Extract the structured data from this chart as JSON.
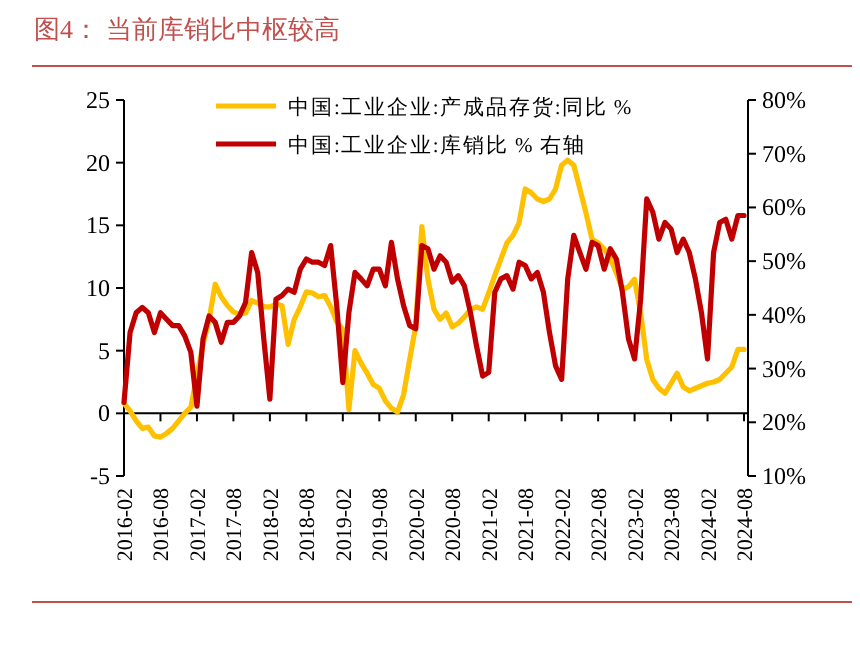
{
  "chart_data": {
    "type": "line",
    "title": "图4：   当前库销比中枢较高",
    "categories": [
      "2016-02",
      null,
      null,
      null,
      null,
      null,
      "2016-08",
      null,
      null,
      null,
      null,
      null,
      "2017-02",
      null,
      null,
      null,
      null,
      null,
      "2017-08",
      null,
      null,
      null,
      null,
      null,
      "2018-02",
      null,
      null,
      null,
      null,
      null,
      "2018-08",
      null,
      null,
      null,
      null,
      null,
      "2019-02",
      null,
      null,
      null,
      null,
      null,
      "2019-08",
      null,
      null,
      null,
      null,
      null,
      "2020-02",
      null,
      null,
      null,
      null,
      null,
      "2020-08",
      null,
      null,
      null,
      null,
      null,
      "2021-02",
      null,
      null,
      null,
      null,
      null,
      "2021-08",
      null,
      null,
      null,
      null,
      null,
      "2022-02",
      null,
      null,
      null,
      null,
      null,
      "2022-08",
      null,
      null,
      null,
      null,
      null,
      "2023-02",
      null,
      null,
      null,
      null,
      null,
      "2023-08",
      null,
      null,
      null,
      null,
      null,
      "2024-02",
      null,
      null,
      null,
      null,
      null,
      "2024-08"
    ],
    "series": [
      {
        "name": "中国:工业企业:产成品存货:同比 %",
        "color": "#ffc000",
        "values": [
          0.8,
          0.2,
          -0.6,
          -1.2,
          -1.1,
          -1.8,
          -1.9,
          -1.6,
          -1.2,
          -0.6,
          0,
          0.5,
          3,
          5.5,
          7.5,
          10.3,
          9.3,
          8.6,
          8.1,
          7.9,
          8,
          9,
          8.8,
          8.5,
          8.5,
          8.7,
          8.6,
          5.5,
          7.5,
          8.5,
          9.7,
          9.6,
          9.3,
          9.4,
          8.5,
          7.3,
          6.7,
          0.3,
          5,
          4,
          3.2,
          2.3,
          2,
          1,
          0.4,
          0.1,
          1.5,
          4.3,
          7,
          14.9,
          10.7,
          8.3,
          7.5,
          8,
          6.9,
          7.2,
          7.7,
          8.3,
          8.5,
          8.3,
          9.6,
          11,
          12.3,
          13.6,
          14.2,
          15.2,
          17.9,
          17.6,
          17.1,
          16.9,
          17.1,
          17.9,
          19.8,
          20.2,
          19.8,
          17.9,
          16,
          13.9,
          13.6,
          13.1,
          12.4,
          11.2,
          9.9,
          10.1,
          10.7,
          8,
          4.3,
          2.7,
          2,
          1.6,
          2.4,
          3.2,
          2.1,
          1.8,
          2,
          2.2,
          2.4,
          2.5,
          2.7,
          3.2,
          3.7,
          5.1,
          5.1
        ]
      },
      {
        "name": "中国:工业企业:库销比 % 右轴",
        "color": "#c00000",
        "axis": "y2",
        "values": [
          23.7,
          36.7,
          40.4,
          41.4,
          40.4,
          36.7,
          40.4,
          39.2,
          38,
          38,
          36.1,
          33,
          23,
          35.5,
          39.8,
          38.6,
          34.9,
          38.6,
          38.6,
          39.8,
          42.3,
          51.6,
          47.9,
          35.5,
          24.3,
          42.9,
          43.6,
          44.8,
          44.2,
          48.5,
          50.4,
          49.8,
          49.8,
          49.2,
          52.9,
          41.7,
          27.4,
          40.4,
          47.9,
          46.7,
          45.4,
          48.5,
          48.5,
          45.4,
          53.5,
          46.7,
          41.7,
          38,
          37.4,
          52.9,
          52.3,
          48.5,
          51,
          49.8,
          46.1,
          47.3,
          45.4,
          40.4,
          34.2,
          28.6,
          29.3,
          44.2,
          46.7,
          47.3,
          44.8,
          49.8,
          49.2,
          46.7,
          47.9,
          44.2,
          36.7,
          30.5,
          28,
          46.7,
          54.8,
          51.6,
          48.5,
          53.5,
          52.9,
          48.5,
          52.3,
          50.4,
          44.2,
          35.5,
          31.8,
          42.9,
          61.6,
          59.1,
          54.1,
          57.2,
          56,
          51.6,
          54.1,
          51.6,
          46.7,
          40.4,
          31.8,
          51.6,
          57.2,
          57.8,
          54.1,
          58.5,
          58.5
        ]
      }
    ],
    "ylim": [
      -5,
      25
    ],
    "yticks": [
      -5,
      0,
      5,
      10,
      15,
      20,
      25
    ],
    "y2lim": [
      10,
      80
    ],
    "y2ticks": [
      {
        "value": 10,
        "label": "10%"
      },
      {
        "value": 20,
        "label": "20%"
      },
      {
        "value": 30,
        "label": "30%"
      },
      {
        "value": 40,
        "label": "40%"
      },
      {
        "value": 50,
        "label": "50%"
      },
      {
        "value": 60,
        "label": "60%"
      },
      {
        "value": 70,
        "label": "70%"
      },
      {
        "value": 80,
        "label": "80%"
      }
    ],
    "legend": "top",
    "marker": "none",
    "line_style": "solid"
  }
}
